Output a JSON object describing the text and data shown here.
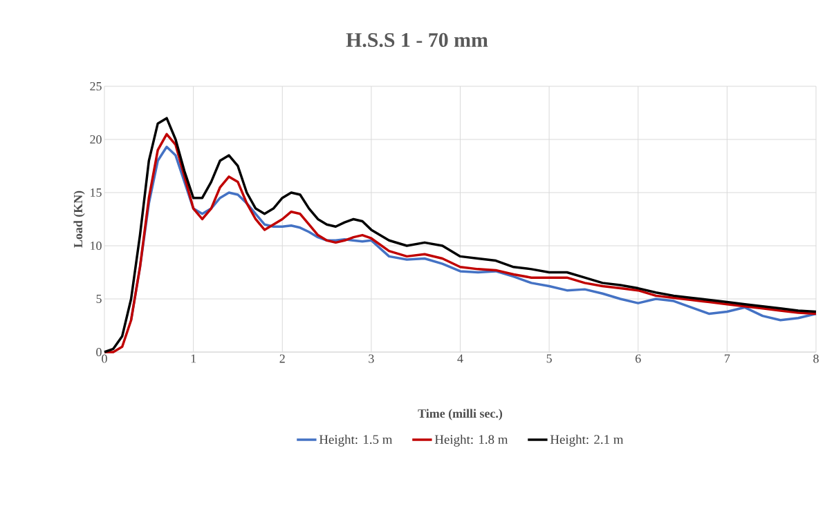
{
  "chart_data": {
    "type": "line",
    "title": "H.S.S 1 - 70 mm",
    "xlabel": "Time (milli sec.)",
    "ylabel": "Load (KN)",
    "x": [
      0,
      0.1,
      0.2,
      0.3,
      0.4,
      0.5,
      0.6,
      0.7,
      0.8,
      0.9,
      1.0,
      1.1,
      1.2,
      1.3,
      1.4,
      1.5,
      1.6,
      1.7,
      1.8,
      1.9,
      2.0,
      2.1,
      2.2,
      2.3,
      2.4,
      2.5,
      2.6,
      2.7,
      2.8,
      2.9,
      3.0,
      3.2,
      3.4,
      3.6,
      3.8,
      4.0,
      4.2,
      4.4,
      4.6,
      4.8,
      5.0,
      5.2,
      5.4,
      5.6,
      5.8,
      6.0,
      6.2,
      6.4,
      6.6,
      6.8,
      7.0,
      7.2,
      7.4,
      7.6,
      7.8,
      8.0
    ],
    "series": [
      {
        "name": "Height: 1.5 m",
        "color": "#4472c4",
        "values": [
          null,
          null,
          null,
          3,
          8,
          14,
          18,
          19.3,
          18.5,
          16,
          13.5,
          13,
          13.5,
          14.5,
          15,
          14.8,
          14,
          13,
          12,
          11.8,
          11.8,
          11.9,
          11.7,
          11.3,
          10.8,
          10.5,
          10.5,
          10.6,
          10.5,
          10.4,
          10.5,
          9,
          8.7,
          8.8,
          8.3,
          7.6,
          7.5,
          7.6,
          7.1,
          6.5,
          6.2,
          5.8,
          5.9,
          5.5,
          5,
          4.6,
          5,
          4.8,
          4.2,
          3.6,
          3.8,
          4.2,
          3.4,
          3.0,
          3.2,
          3.6
        ]
      },
      {
        "name": "Height: 1.8 m",
        "color": "#c00000",
        "values": [
          0,
          0,
          0.5,
          3,
          8,
          14.5,
          19,
          20.5,
          19.5,
          16.5,
          13.5,
          12.5,
          13.5,
          15.5,
          16.5,
          16,
          14,
          12.5,
          11.5,
          12,
          12.5,
          13.2,
          13,
          12,
          11,
          10.5,
          10.3,
          10.5,
          10.8,
          11,
          10.7,
          9.5,
          9,
          9.2,
          8.8,
          8,
          7.8,
          7.7,
          7.3,
          7,
          7,
          7,
          6.5,
          6.2,
          6,
          5.8,
          5.3,
          5.1,
          4.9,
          4.7,
          4.5,
          4.3,
          4.1,
          3.9,
          3.7,
          3.6
        ]
      },
      {
        "name": "Height: 2.1 m",
        "color": "#000000",
        "values": [
          0,
          0.3,
          1.5,
          5,
          11,
          18,
          21.5,
          22,
          20,
          17,
          14.5,
          14.5,
          16,
          18,
          18.5,
          17.5,
          15,
          13.5,
          13,
          13.5,
          14.5,
          15,
          14.8,
          13.5,
          12.5,
          12,
          11.8,
          12.2,
          12.5,
          12.3,
          11.5,
          10.5,
          10,
          10.3,
          10,
          9,
          8.8,
          8.6,
          8,
          7.8,
          7.5,
          7.5,
          7,
          6.5,
          6.3,
          6,
          5.6,
          5.3,
          5.1,
          4.9,
          4.7,
          4.5,
          4.3,
          4.1,
          3.9,
          3.8
        ]
      }
    ],
    "xlim": [
      0,
      8
    ],
    "ylim": [
      0,
      25
    ],
    "xticks": [
      0,
      1,
      2,
      3,
      4,
      5,
      6,
      7,
      8
    ],
    "yticks": [
      0,
      5,
      10,
      15,
      20,
      25
    ],
    "grid": true,
    "legend": "bottom",
    "line_style": "solid"
  }
}
